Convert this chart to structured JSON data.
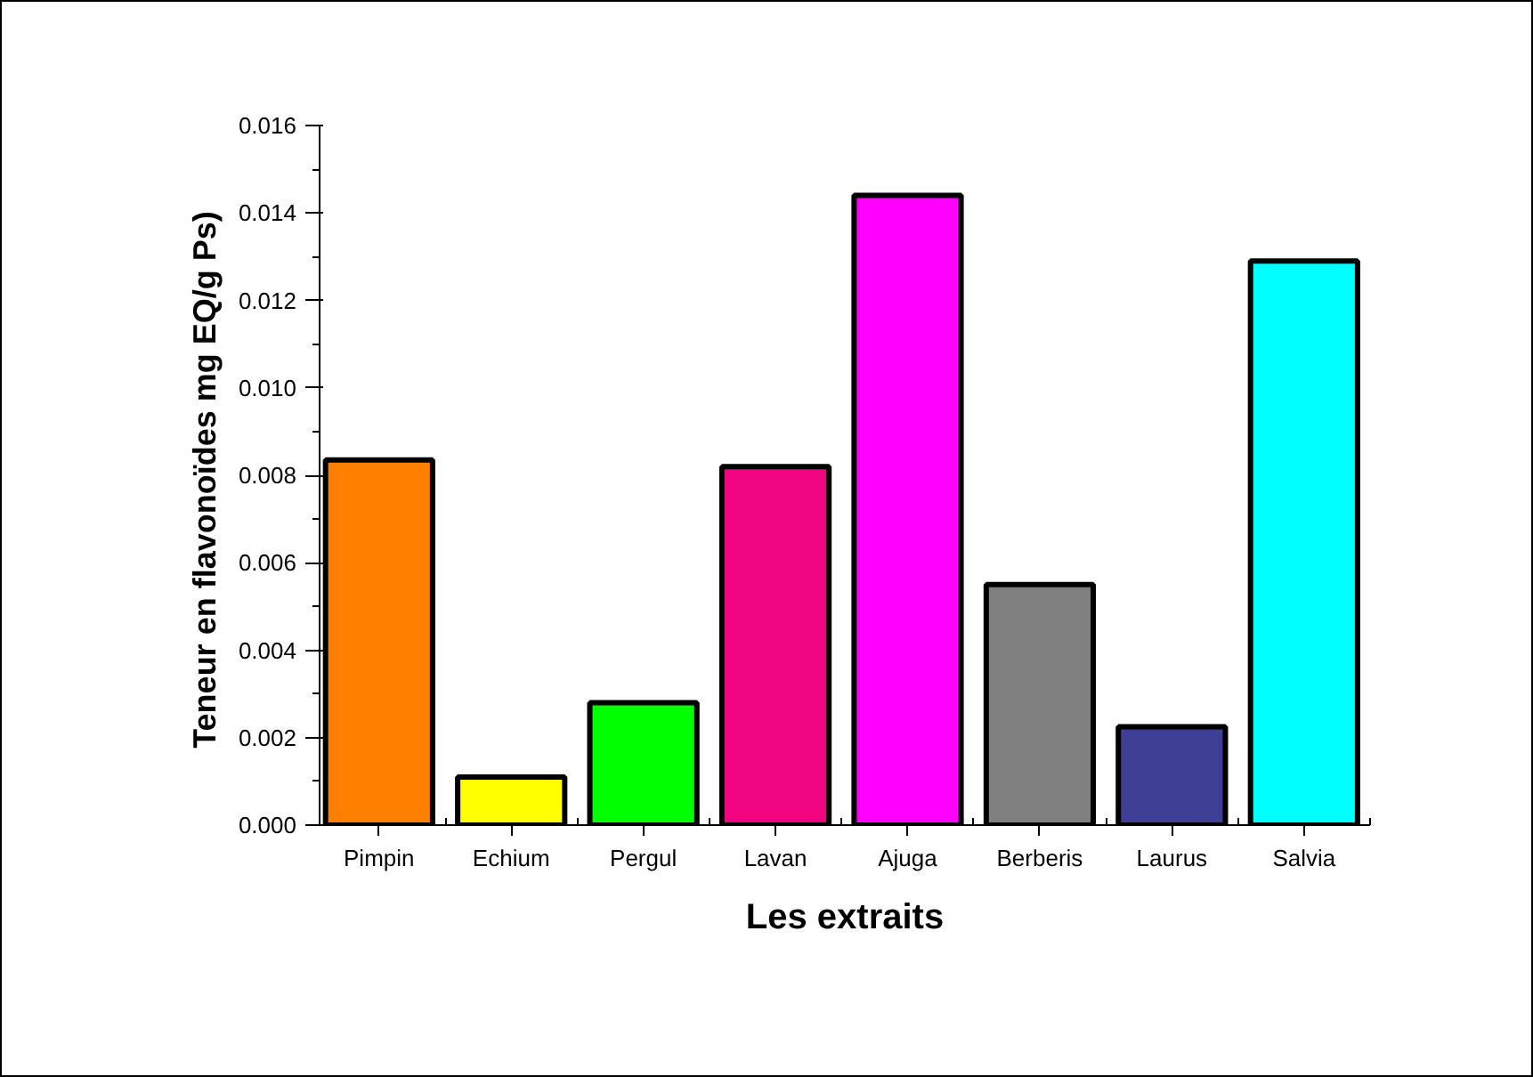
{
  "chart_data": {
    "type": "bar",
    "xlabel": "Les extraits",
    "ylabel": "Teneur en flavonoïdes  mg EQ/g Ps)",
    "categories": [
      "Pimpin",
      "Echium",
      "Pergul",
      "Lavan",
      "Ajuga",
      "Berberis",
      "Laurus",
      "Salvia"
    ],
    "values": [
      0.00835,
      0.0011,
      0.0028,
      0.0082,
      0.0144,
      0.0055,
      0.00225,
      0.0129
    ],
    "colors": [
      "#ff7f00",
      "#ffff00",
      "#00ff00",
      "#f0047f",
      "#ff00ff",
      "#808080",
      "#3f3f96",
      "#00ffff"
    ],
    "ylim": [
      0,
      0.016
    ],
    "yticks": [
      {
        "value": 0,
        "label": "0.000"
      },
      {
        "value": 0.002,
        "label": "0.002"
      },
      {
        "value": 0.004,
        "label": "0.004"
      },
      {
        "value": 0.006,
        "label": "0.006"
      },
      {
        "value": 0.008,
        "label": "0.008"
      },
      {
        "value": 0.01,
        "label": "0.010"
      },
      {
        "value": 0.012,
        "label": "0.012"
      },
      {
        "value": 0.014,
        "label": "0.014"
      },
      {
        "value": 0.016,
        "label": "0.016"
      }
    ],
    "grid": false
  }
}
